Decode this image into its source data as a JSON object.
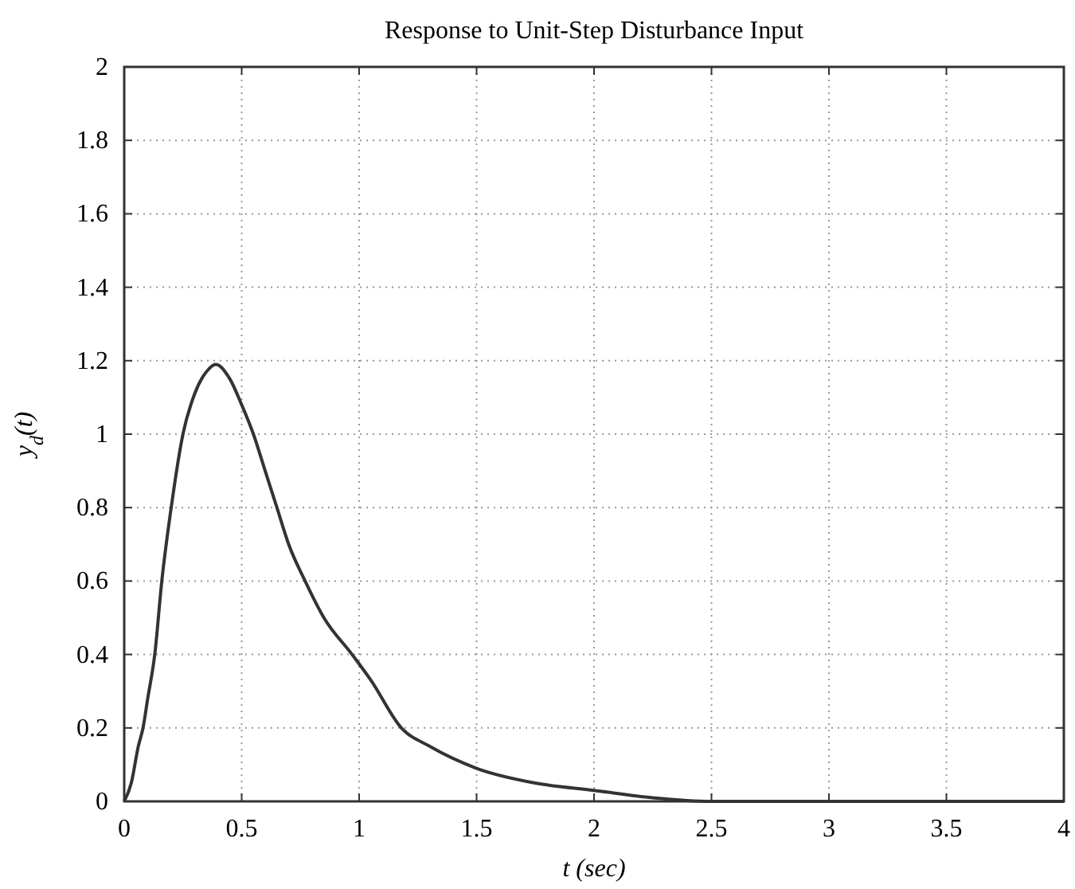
{
  "chart_data": {
    "type": "line",
    "title": "Response to Unit-Step Disturbance Input",
    "xlabel": "t (sec)",
    "ylabel": "y$_{d}$(t)",
    "x": [
      0,
      0.03,
      0.06,
      0.08,
      0.1,
      0.13,
      0.16,
      0.2,
      0.25,
      0.3,
      0.35,
      0.39,
      0.45,
      0.5,
      0.55,
      0.6,
      0.65,
      0.7,
      0.77,
      0.85,
      0.97,
      1.05,
      1.18,
      1.3,
      1.5,
      1.75,
      2,
      2.25,
      2.5,
      3,
      4
    ],
    "series": [
      {
        "color": "#333333",
        "values": [
          0,
          0.05,
          0.15,
          0.2,
          0.28,
          0.4,
          0.6,
          0.8,
          1.0,
          1.11,
          1.17,
          1.19,
          1.15,
          1.08,
          1.0,
          0.9,
          0.8,
          0.7,
          0.6,
          0.5,
          0.4,
          0.33,
          0.2,
          0.15,
          0.09,
          0.05,
          0.03,
          0.01,
          0,
          0,
          0
        ]
      }
    ],
    "xlim": [
      0,
      4
    ],
    "xticks": [
      0,
      0.5,
      1,
      1.5,
      2,
      2.5,
      3,
      3.5,
      4
    ],
    "ylim": [
      0,
      2
    ],
    "yticks": [
      0,
      0.2,
      0.4,
      0.6,
      0.8,
      1,
      1.2,
      1.4,
      1.6,
      1.8,
      2
    ],
    "grid": true,
    "line_style": "solid",
    "marker": "none"
  }
}
